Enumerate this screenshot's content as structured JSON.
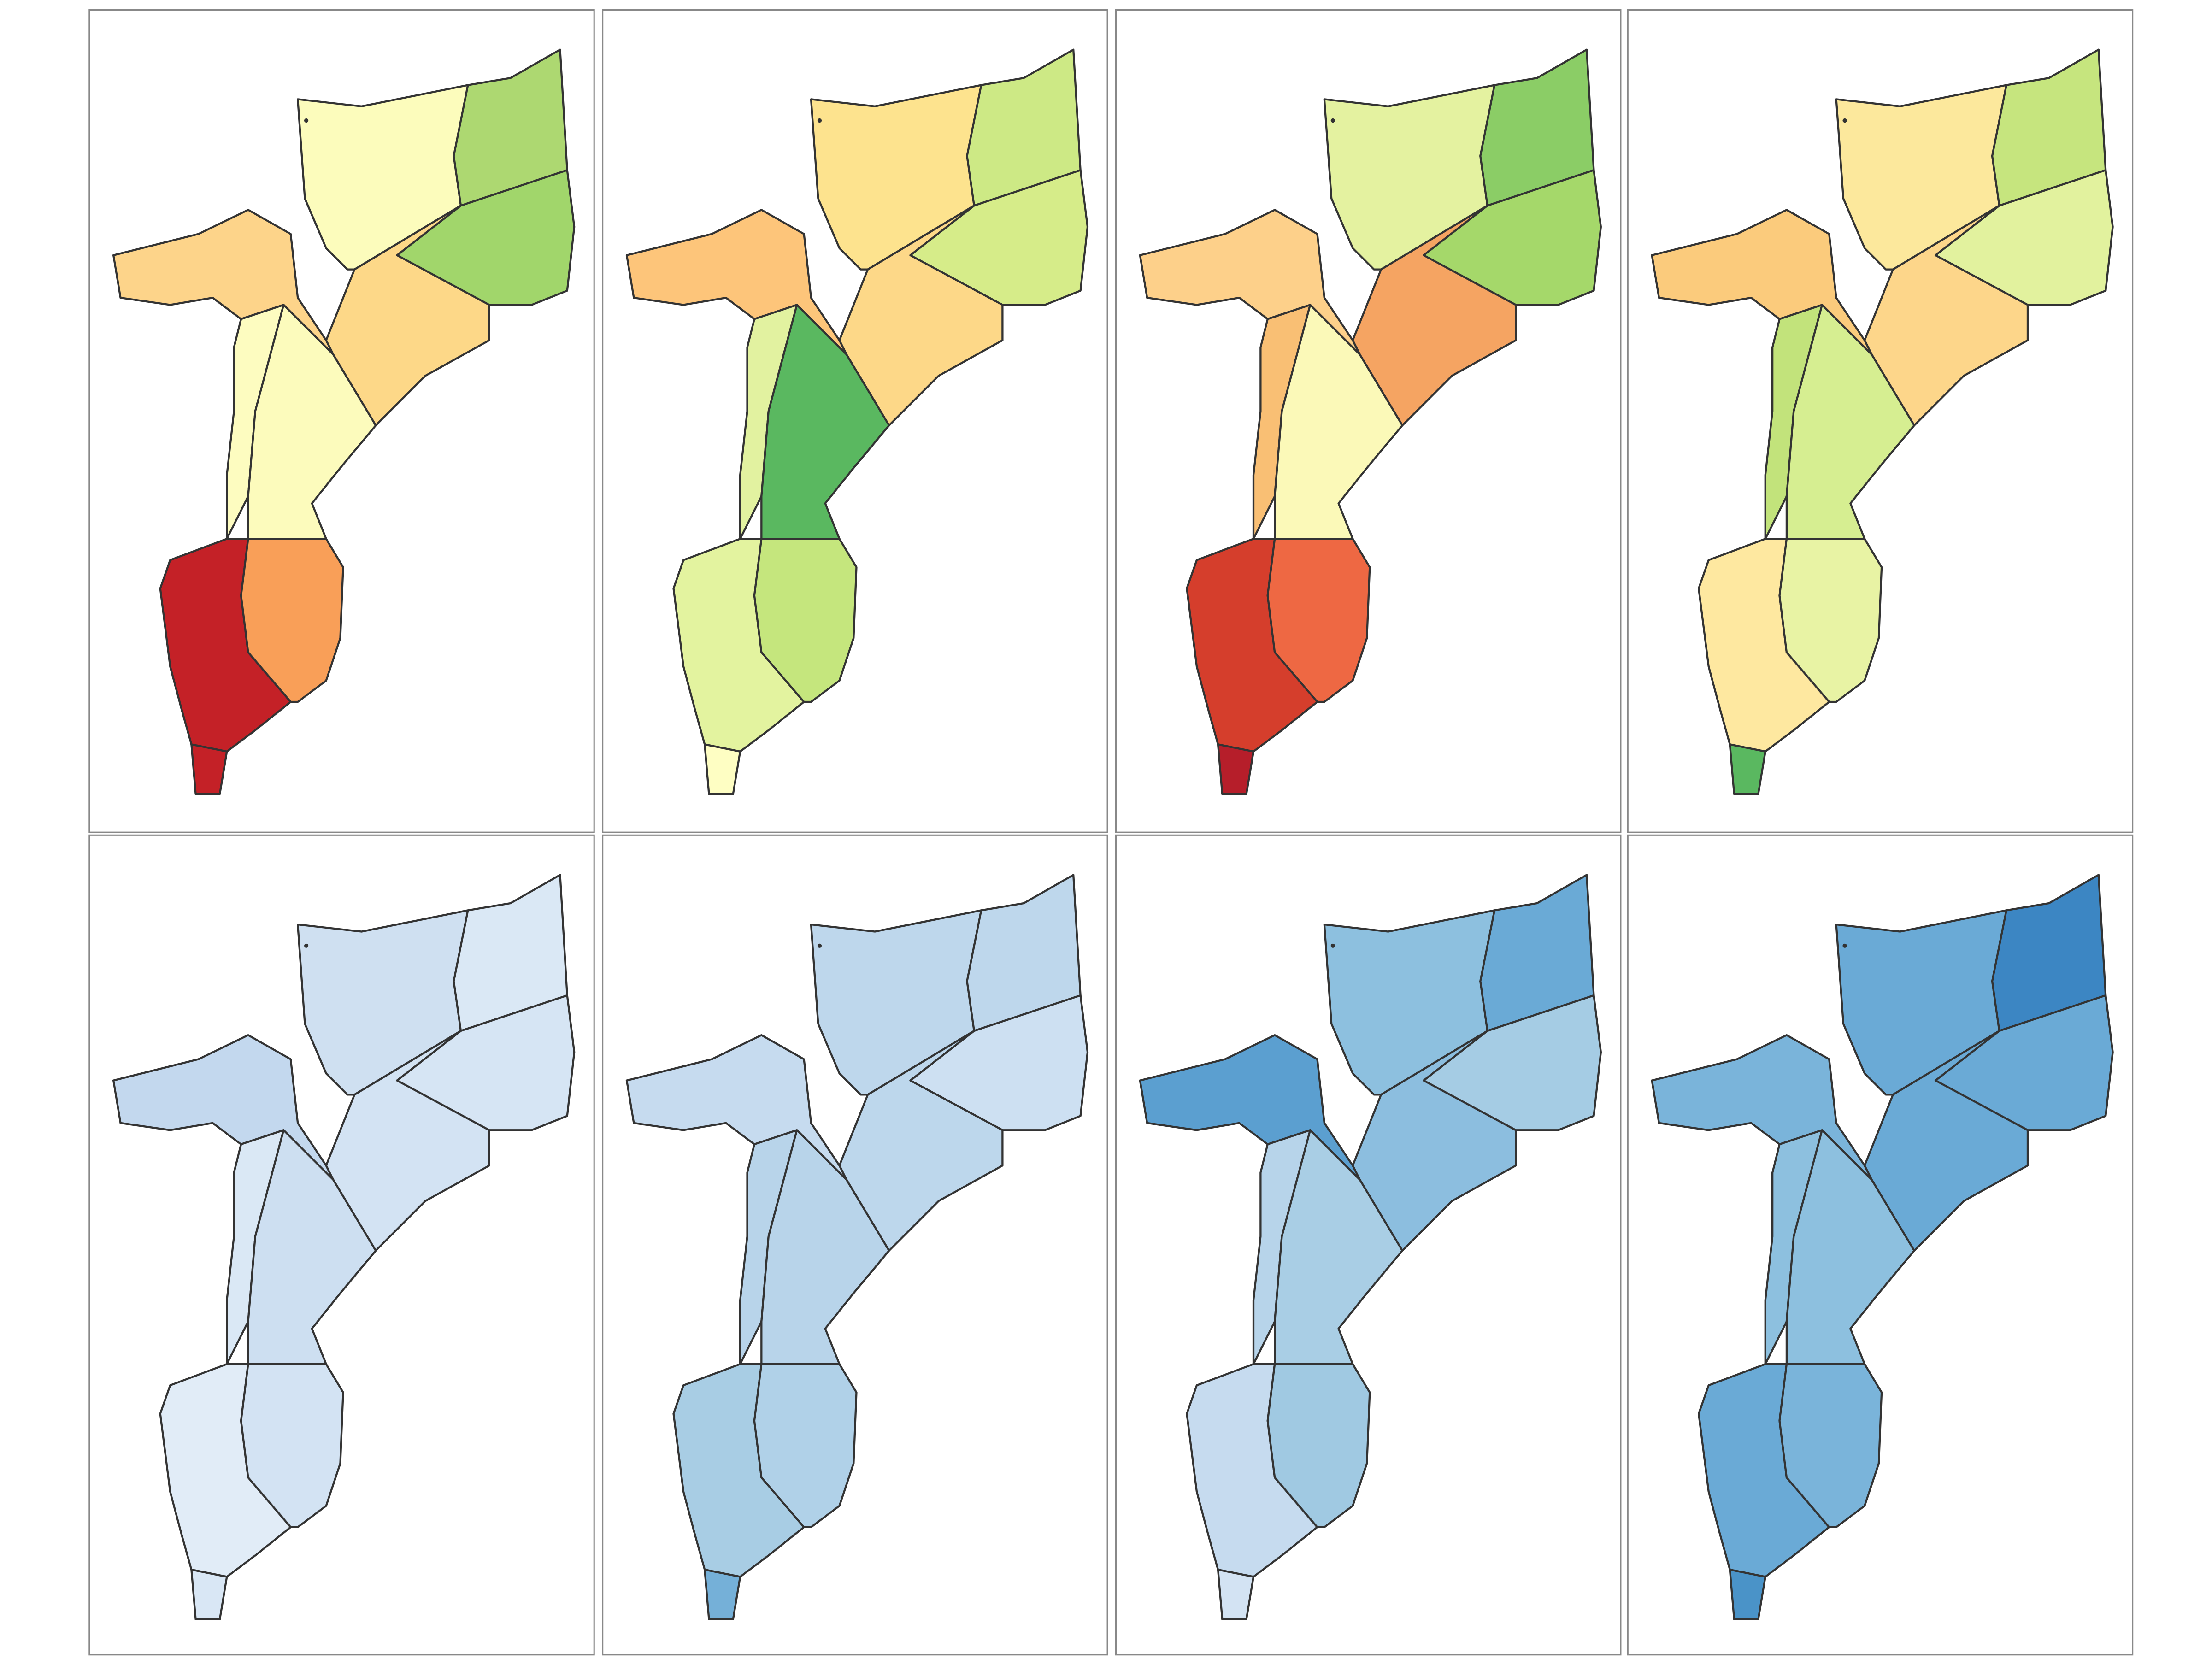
{
  "panels": [
    {
      "fills": [
        "#fcfcbc",
        "#add871",
        "#a1d66b",
        "#fdd888",
        "#fdd48a",
        "#fdfcc0",
        "#fcfbbc",
        "#c42127",
        "#f99f58",
        "#c42127"
      ]
    },
    {
      "fills": [
        "#fde38e",
        "#cde985",
        "#d6ec89",
        "#fdd888",
        "#fdc57a",
        "#e2f2a0",
        "#5ab860",
        "#e3f39f",
        "#c5e67d",
        "#fefec3"
      ]
    },
    {
      "fills": [
        "#e4f2a0",
        "#8bcd66",
        "#a5d86a",
        "#f5a462",
        "#fdd08a",
        "#f9bf74",
        "#fbf9b8",
        "#d53e2c",
        "#ee6843",
        "#b61e2a"
      ]
    },
    {
      "fills": [
        "#fce89c",
        "#c6e57e",
        "#e2f29e",
        "#fdd68a",
        "#fbcb7c",
        "#c2e37b",
        "#d6ee91",
        "#fee8a0",
        "#e8f3a4",
        "#5ab860"
      ]
    },
    {
      "fills": [
        "#cfe0f1",
        "#dae8f5",
        "#d6e5f4",
        "#d3e3f3",
        "#c3d8ee",
        "#dae8f5",
        "#cddff1",
        "#e1ecf7",
        "#d3e3f3",
        "#d9e7f5"
      ]
    },
    {
      "fills": [
        "#bed7ec",
        "#bed7ec",
        "#cde0f2",
        "#bdd7ec",
        "#c6dbef",
        "#b8d4ea",
        "#b8d4ea",
        "#a8cde4",
        "#b0d1e8",
        "#75b0d8"
      ]
    },
    {
      "fills": [
        "#8dc0df",
        "#6aaad6",
        "#a5cce4",
        "#8cbedf",
        "#5b9fd0",
        "#b7d4ea",
        "#a9cee5",
        "#c6dbef",
        "#a0c9e2",
        "#d3e3f3"
      ]
    },
    {
      "fills": [
        "#6aaad6",
        "#3c86c3",
        "#6aaad6",
        "#6aaad6",
        "#7ab4da",
        "#8dc0df",
        "#8dc0df",
        "#6aaad6",
        "#7ab4da",
        "#4a93c8"
      ]
    }
  ]
}
